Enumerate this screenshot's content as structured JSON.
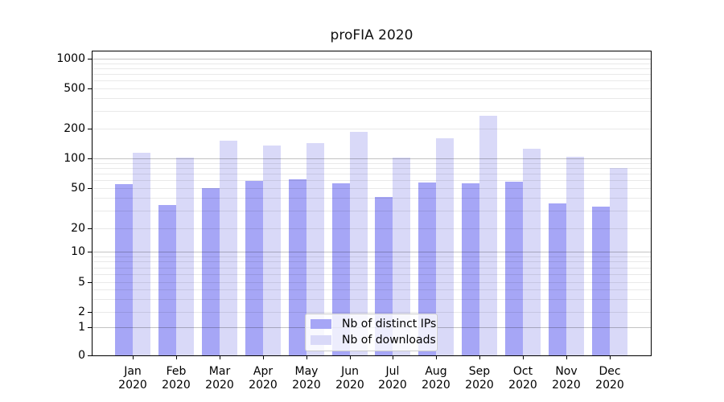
{
  "title": "proFIA 2020",
  "chart_data": {
    "type": "bar",
    "title": "proFIA 2020",
    "categories": [
      "Jan 2020",
      "Feb 2020",
      "Mar 2020",
      "Apr 2020",
      "May 2020",
      "Jun 2020",
      "Jul 2020",
      "Aug 2020",
      "Sep 2020",
      "Oct 2020",
      "Nov 2020",
      "Dec 2020"
    ],
    "series": [
      {
        "name": "Nb of distinct IPs",
        "color": "#a6a6f6",
        "values": [
          55,
          34,
          50,
          59,
          61,
          56,
          41,
          57,
          56,
          58,
          35,
          33
        ]
      },
      {
        "name": "Nb of downloads",
        "color": "#d9d9f8",
        "values": [
          115,
          101,
          152,
          134,
          142,
          186,
          102,
          160,
          270,
          125,
          103,
          80
        ]
      }
    ],
    "y_axis": {
      "scale": "log-like",
      "tick_values": [
        0,
        1,
        2,
        5,
        10,
        20,
        50,
        100,
        200,
        500,
        1000
      ],
      "tick_labels": [
        "0",
        "1",
        "2",
        "5",
        "10",
        "20",
        "50",
        "100",
        "200",
        "500",
        "1000"
      ],
      "range": [
        0,
        1000
      ],
      "grid": "on"
    },
    "legend": {
      "position": "bottom-center",
      "entries": [
        "Nb of distinct IPs",
        "Nb of downloads"
      ]
    }
  },
  "colors": {
    "bar_distinct_ips": "#a6a6f6",
    "bar_downloads": "#d9d9f8",
    "axis": "#000000",
    "grid_major": "#c4c4c4",
    "grid_minor": "#e9e9e9",
    "legend_border": "#cccccc",
    "background": "#ffffff"
  }
}
